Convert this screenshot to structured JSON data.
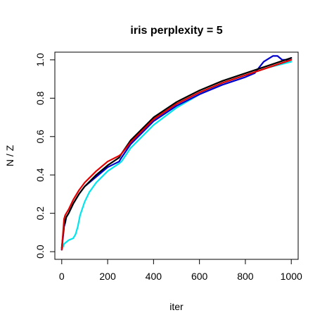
{
  "chart_data": {
    "type": "line",
    "title": "iris perplexity = 5",
    "xlabel": "iter",
    "ylabel": "N / Z",
    "xlim": [
      -30,
      1030
    ],
    "ylim": [
      -0.04,
      1.04
    ],
    "xticks": [
      0,
      200,
      400,
      600,
      800,
      1000
    ],
    "xtick_labels": [
      "0",
      "200",
      "400",
      "600",
      "800",
      "1000"
    ],
    "yticks": [
      0.0,
      0.2,
      0.4,
      0.6,
      0.8,
      1.0
    ],
    "ytick_labels": [
      "0.0",
      "0.2",
      "0.4",
      "0.6",
      "0.8",
      "1.0"
    ],
    "grid": false,
    "series": [
      {
        "color": "#00e5ee",
        "x": [
          0,
          10,
          20,
          30,
          50,
          60,
          70,
          80,
          100,
          120,
          150,
          200,
          250,
          260,
          300,
          400,
          500,
          600,
          700,
          800,
          900,
          1000
        ],
        "y": [
          0.01,
          0.04,
          0.05,
          0.06,
          0.07,
          0.09,
          0.13,
          0.19,
          0.26,
          0.31,
          0.36,
          0.42,
          0.46,
          0.47,
          0.54,
          0.66,
          0.75,
          0.82,
          0.88,
          0.92,
          0.96,
          0.99
        ]
      },
      {
        "color": "#0000cd",
        "x": [
          0,
          10,
          15,
          20,
          30,
          50,
          75,
          100,
          150,
          200,
          250,
          260,
          300,
          400,
          500,
          600,
          700,
          800,
          840,
          880,
          920,
          940,
          960,
          980,
          1000
        ],
        "y": [
          0.01,
          0.13,
          0.15,
          0.18,
          0.2,
          0.25,
          0.3,
          0.34,
          0.39,
          0.44,
          0.47,
          0.49,
          0.56,
          0.68,
          0.76,
          0.82,
          0.87,
          0.91,
          0.93,
          0.99,
          1.02,
          1.02,
          1.0,
          1.0,
          1.01
        ]
      },
      {
        "color": "#000000",
        "x": [
          0,
          10,
          15,
          20,
          30,
          50,
          75,
          100,
          150,
          200,
          250,
          260,
          300,
          400,
          500,
          600,
          700,
          800,
          900,
          1000
        ],
        "y": [
          0.02,
          0.14,
          0.16,
          0.18,
          0.2,
          0.25,
          0.3,
          0.34,
          0.4,
          0.45,
          0.49,
          0.51,
          0.58,
          0.7,
          0.78,
          0.84,
          0.89,
          0.93,
          0.97,
          1.01
        ]
      },
      {
        "color": "#e00000",
        "x": [
          0,
          10,
          15,
          20,
          30,
          50,
          75,
          100,
          150,
          200,
          250,
          260,
          300,
          400,
          500,
          600,
          700,
          800,
          900,
          1000
        ],
        "y": [
          0.01,
          0.17,
          0.19,
          0.2,
          0.22,
          0.27,
          0.32,
          0.36,
          0.42,
          0.47,
          0.5,
          0.51,
          0.57,
          0.69,
          0.77,
          0.83,
          0.88,
          0.92,
          0.96,
          1.0
        ]
      }
    ]
  }
}
